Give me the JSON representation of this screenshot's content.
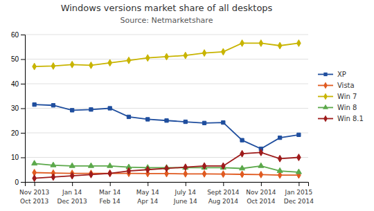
{
  "chart_data": {
    "type": "line",
    "title": "Windows versions market share of all desktops",
    "subtitle": "Source: Netmarketshare",
    "xlim": [
      -0.5,
      14.5
    ],
    "xticks": [
      {
        "value": 0,
        "label": "Nov 2013"
      },
      {
        "value": 2,
        "label": "Jan 14"
      },
      {
        "value": 4,
        "label": "Mar 14"
      },
      {
        "value": 6,
        "label": "May 14"
      },
      {
        "value": 8,
        "label": "July 14"
      },
      {
        "value": 10,
        "label": "Sept 2014"
      },
      {
        "value": 12,
        "label": "Nov 2014"
      },
      {
        "value": 14,
        "label": "Jan 2015"
      },
      {
        "value": 0,
        "label": "Oct 2013"
      },
      {
        "value": 2,
        "label": "Dec 2013"
      },
      {
        "value": 4,
        "label": "Feb 14"
      },
      {
        "value": 6,
        "label": "Apr 14"
      },
      {
        "value": 8,
        "label": "June 14"
      },
      {
        "value": 10,
        "label": "Aug 2014"
      },
      {
        "value": 12,
        "label": "Oct 2014"
      },
      {
        "value": 14,
        "label": "Dec 2014"
      }
    ],
    "ylim": [
      0,
      60
    ],
    "yticks": [
      0,
      10,
      20,
      30,
      40,
      50,
      60
    ],
    "grid": true,
    "legend": "right",
    "series": [
      {
        "name": "XP",
        "color": "#1f4e9e",
        "marker": "square",
        "values": [
          31.5,
          31.2,
          29.2,
          29.5,
          30.0,
          26.5,
          25.5,
          25.0,
          24.5,
          24.0,
          24.2,
          17.0,
          13.5,
          18.0,
          19.2
        ]
      },
      {
        "name": "Vista",
        "color": "#e05a20",
        "marker": "diamond",
        "values": [
          3.8,
          3.6,
          3.5,
          3.5,
          3.5,
          3.5,
          3.4,
          3.4,
          3.3,
          3.3,
          3.2,
          3.1,
          3.0,
          2.8,
          2.8
        ]
      },
      {
        "name": "Win 7",
        "color": "#c8b400",
        "marker": "diamond",
        "values": [
          47.0,
          47.2,
          47.8,
          47.5,
          48.5,
          49.5,
          50.5,
          51.0,
          51.5,
          52.5,
          53.0,
          56.5,
          56.5,
          55.5,
          56.5
        ]
      },
      {
        "name": "Win 8",
        "color": "#5ba84a",
        "marker": "triangle",
        "values": [
          7.5,
          6.8,
          6.5,
          6.5,
          6.5,
          6.0,
          5.8,
          5.8,
          5.8,
          5.8,
          5.8,
          5.5,
          6.5,
          4.5,
          4.0
        ]
      },
      {
        "name": "Win 8.1",
        "color": "#9e1b1b",
        "marker": "diamond",
        "values": [
          1.5,
          2.0,
          2.5,
          3.0,
          3.5,
          4.5,
          5.0,
          5.5,
          6.0,
          6.5,
          6.5,
          11.5,
          12.0,
          9.5,
          10.0
        ]
      }
    ]
  }
}
